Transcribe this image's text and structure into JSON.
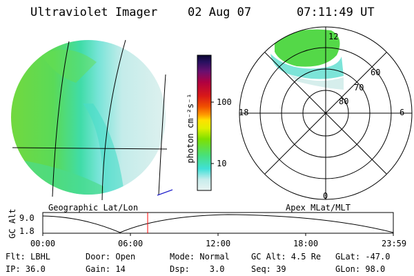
{
  "header": {
    "instrument": "Ultraviolet Imager",
    "date": "02 Aug 07",
    "time": "07:11:49 UT"
  },
  "geo_panel": {
    "label": "Geographic Lat/Lon"
  },
  "polar_panel": {
    "label": "Apex MLat/MLT",
    "mlt_labels": {
      "top": "12",
      "bottom": "0",
      "left": "18",
      "right": "6"
    },
    "lat_labels": [
      "60",
      "70",
      "80"
    ]
  },
  "colorbar": {
    "unit_label": "photon cm⁻²s⁻¹",
    "ticks": [
      "100",
      "10"
    ]
  },
  "altitude_plot": {
    "y_title": "GC Alt",
    "y_ticks": [
      "9.0",
      "1.8"
    ],
    "x_ticks": [
      "00:00",
      "06:00",
      "12:00",
      "18:00",
      "23:59"
    ],
    "current_time_marker": "07:11"
  },
  "info": {
    "flt": "Flt: LBHL",
    "ip": "IP: 36.0",
    "door": "Door: Open",
    "gain": "Gain: 14",
    "mode": "Mode: Normal",
    "dsp": "Dsp:    3.0",
    "gcalt": "GC Alt: 4.5 Re",
    "seq": "Seq: 39",
    "glat": "GLat: -47.0",
    "glon": "GLon: 98.0"
  },
  "colors": {
    "accent_marker": "#ff0000",
    "grid": "#000000",
    "track": "#0000cc"
  }
}
